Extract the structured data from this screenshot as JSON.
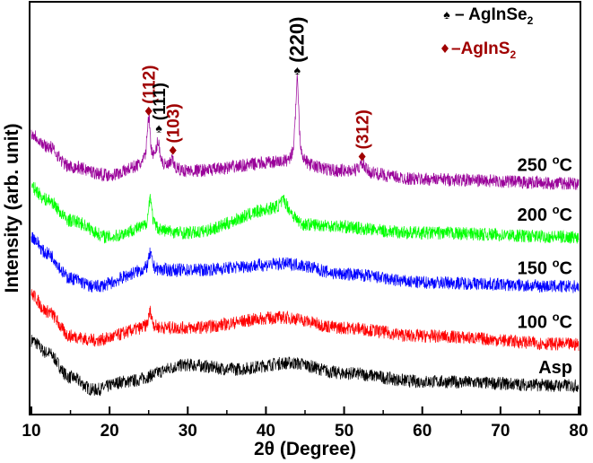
{
  "chart_data": {
    "type": "line",
    "title": "",
    "xlabel": "2θ (Degree)",
    "ylabel": "Intensity (arb. unit)",
    "xlim": [
      10,
      80
    ],
    "ylim": [
      0,
      100
    ],
    "xticks": [
      10,
      20,
      30,
      40,
      50,
      60,
      70,
      80
    ],
    "xticks_minor": [
      15,
      25,
      35,
      45,
      55,
      65,
      75
    ],
    "grid": false,
    "series": [
      {
        "name": "Asp",
        "color": "#000000",
        "noise": 1.6,
        "baseline": [
          [
            10,
            18
          ],
          [
            12,
            15
          ],
          [
            15,
            9
          ],
          [
            18,
            6
          ],
          [
            22,
            8
          ],
          [
            30,
            12
          ],
          [
            36,
            11
          ],
          [
            43,
            12.5
          ],
          [
            50,
            10
          ],
          [
            60,
            8
          ],
          [
            80,
            7
          ]
        ],
        "peaks": []
      },
      {
        "name": "100 °C",
        "color": "#ff0000",
        "noise": 1.6,
        "baseline": [
          [
            10,
            29
          ],
          [
            12,
            25
          ],
          [
            15,
            19
          ],
          [
            18,
            18
          ],
          [
            25,
            21
          ],
          [
            30,
            21
          ],
          [
            42,
            23.5
          ],
          [
            50,
            21
          ],
          [
            60,
            19
          ],
          [
            80,
            17
          ]
        ],
        "peaks": [
          [
            25.2,
            4,
            0.25
          ]
        ]
      },
      {
        "name": "150 °C",
        "color": "#0000ff",
        "noise": 1.6,
        "baseline": [
          [
            10,
            43
          ],
          [
            12,
            39
          ],
          [
            15,
            33
          ],
          [
            18,
            31
          ],
          [
            25,
            35
          ],
          [
            30,
            35
          ],
          [
            43,
            36.5
          ],
          [
            50,
            34
          ],
          [
            60,
            32
          ],
          [
            80,
            31
          ]
        ],
        "peaks": [
          [
            25.2,
            4,
            0.25
          ]
        ]
      },
      {
        "name": "200 °C",
        "color": "#00ff00",
        "noise": 1.6,
        "baseline": [
          [
            10,
            55
          ],
          [
            12,
            52
          ],
          [
            15,
            47
          ],
          [
            20,
            43
          ],
          [
            24,
            45
          ],
          [
            30,
            44
          ],
          [
            42,
            50
          ],
          [
            45,
            46
          ],
          [
            60,
            44
          ],
          [
            80,
            43
          ]
        ],
        "peaks": [
          [
            25.2,
            8,
            0.25
          ],
          [
            42.3,
            2,
            0.5
          ]
        ]
      },
      {
        "name": "250 °C",
        "color": "#990099",
        "noise": 1.6,
        "baseline": [
          [
            10,
            68
          ],
          [
            12,
            65
          ],
          [
            15,
            60
          ],
          [
            20,
            58
          ],
          [
            24,
            60
          ],
          [
            30,
            59
          ],
          [
            42,
            61
          ],
          [
            50,
            59
          ],
          [
            60,
            57
          ],
          [
            80,
            56
          ]
        ],
        "peaks": [
          [
            25.0,
            12,
            0.25
          ],
          [
            26.2,
            6,
            0.3
          ],
          [
            28.0,
            2,
            0.3
          ],
          [
            44.0,
            21,
            0.25
          ],
          [
            52.3,
            2,
            0.4
          ]
        ]
      }
    ],
    "series_labels": [
      {
        "text": "250 °C",
        "y": 59
      },
      {
        "text": "200 °C",
        "y": 47
      },
      {
        "text": "150 °C",
        "y": 34
      },
      {
        "text": "100 °C",
        "y": 21
      },
      {
        "text": "Asp",
        "y": 10
      }
    ],
    "annotations": [
      {
        "text": "(112)",
        "marker": "diamond",
        "color": "#a00000",
        "x": 25.0,
        "y": 73.5
      },
      {
        "text": "(111)",
        "marker": "spade",
        "color": "#000000",
        "x": 26.3,
        "y": 69.5
      },
      {
        "text": "(103)",
        "marker": "diamond",
        "color": "#a00000",
        "x": 28.1,
        "y": 64
      },
      {
        "text": "(220)",
        "marker": "spade",
        "color": "#000000",
        "x": 44.0,
        "y": 83.5
      },
      {
        "text": "(312)",
        "marker": "diamond",
        "color": "#a00000",
        "x": 52.3,
        "y": 62.5
      }
    ],
    "legend": {
      "placement": "top-right",
      "entries": [
        {
          "marker": "spade",
          "prefix": "– AgInSe",
          "sub": "2",
          "color": "#000000"
        },
        {
          "marker": "diamond",
          "prefix": "–AgInS",
          "sub": "2",
          "color": "#a00000"
        }
      ]
    }
  }
}
